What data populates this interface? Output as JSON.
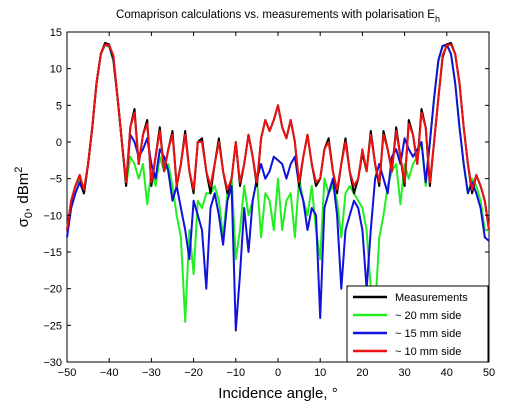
{
  "chart_data": {
    "type": "line",
    "title": "Comaprison calculations vs. measurements with polarisation E",
    "title_subscript": "h",
    "xlabel": "Incidence angle, °",
    "ylabel_main": "σ",
    "ylabel_sub": "0",
    "ylabel_rest": ", dBm",
    "ylabel_sup": "2",
    "xlim": [
      -50,
      50
    ],
    "ylim": [
      -30,
      15
    ],
    "xticks": [
      "−50",
      "−40",
      "−30",
      "−20",
      "−10",
      "0",
      "10",
      "20",
      "30",
      "40",
      "50"
    ],
    "yticks": [
      "−30",
      "−25",
      "−20",
      "−15",
      "−10",
      "−5",
      "0",
      "5",
      "10",
      "15"
    ],
    "xtick_values": [
      -50,
      -40,
      -30,
      -20,
      -10,
      0,
      10,
      20,
      30,
      40,
      50
    ],
    "ytick_values": [
      -30,
      -25,
      -20,
      -15,
      -10,
      -5,
      0,
      5,
      10,
      15
    ],
    "legend_position": "bottom-right",
    "grid": false,
    "x": [
      -50,
      -49,
      -48,
      -47,
      -46,
      -45,
      -44,
      -43,
      -42,
      -41,
      -40,
      -39,
      -38,
      -37,
      -36,
      -35,
      -34,
      -33,
      -32,
      -31,
      -30,
      -29,
      -28,
      -27,
      -26,
      -25,
      -24,
      -23,
      -22,
      -21,
      -20,
      -19,
      -18,
      -17,
      -16,
      -15,
      -14,
      -13,
      -12,
      -11,
      -10,
      -9,
      -8,
      -7,
      -6,
      -5,
      -4,
      -3,
      -2,
      -1,
      0,
      1,
      2,
      3,
      4,
      5,
      6,
      7,
      8,
      9,
      10,
      11,
      12,
      13,
      14,
      15,
      16,
      17,
      18,
      19,
      20,
      21,
      22,
      23,
      24,
      25,
      26,
      27,
      28,
      29,
      30,
      31,
      32,
      33,
      34,
      35,
      36,
      37,
      38,
      39,
      40,
      41,
      42,
      43,
      44,
      45,
      46,
      47,
      48,
      49,
      50
    ],
    "series": [
      {
        "name": "Measurements",
        "color": "#000000",
        "values": [
          -12,
          -8,
          -6,
          -4.5,
          -7,
          -3,
          2,
          8,
          12,
          13.5,
          13.3,
          11.5,
          6,
          0,
          -6,
          2,
          4.5,
          -3,
          1,
          3,
          -6,
          -2,
          2,
          -4,
          -1,
          1.5,
          -6,
          -3,
          1.5,
          -4,
          -7,
          0,
          0.5,
          -4,
          -7,
          -3,
          0.5,
          -4,
          -7,
          -5,
          0,
          -6,
          -3,
          1,
          -2,
          -6,
          0.5,
          3,
          1.5,
          3,
          5,
          2,
          0.5,
          3,
          0,
          -6,
          -2,
          1,
          -3,
          -6,
          -5,
          -1,
          0.5,
          -4,
          -7,
          -3,
          0.5,
          -4,
          -7,
          -5,
          -1.5,
          -4,
          1.5,
          -3,
          -6,
          1.5,
          -1,
          -4,
          2,
          -2,
          -6,
          3,
          1,
          -3,
          4.5,
          2,
          -6,
          0,
          6,
          11.5,
          13.3,
          13.5,
          12,
          8,
          2,
          -3,
          -7,
          -4.5,
          -6,
          -8,
          -12
        ]
      },
      {
        "name": "~ 20 mm side",
        "color": "#22ee22",
        "values": [
          -12,
          -8,
          -6,
          -5,
          -7,
          -3,
          2,
          8,
          12,
          13.2,
          13,
          11,
          6,
          0,
          -6,
          -2,
          -3,
          -5,
          -3,
          -8.5,
          -4,
          -6,
          -2,
          -4,
          -3,
          -6,
          -10,
          -13,
          -24.5,
          -12,
          -18,
          -8,
          -9,
          -7,
          -7,
          -6,
          -8,
          -13,
          -7,
          -5,
          -16,
          -12,
          -6,
          -10,
          -8,
          -5,
          -13,
          -7,
          -8,
          -12,
          -5,
          -12,
          -8,
          -7,
          -13,
          -5,
          -8,
          -10,
          -6,
          -12,
          -16,
          -5,
          -7,
          -6,
          -8,
          -13,
          -7,
          -6,
          -7,
          -8,
          -9,
          -12,
          -20,
          -23,
          -13,
          -10,
          -6,
          -4,
          -3,
          -8.5,
          -3,
          -5,
          -3,
          -2,
          0,
          -6,
          0,
          6,
          11,
          13,
          13.2,
          12,
          8,
          2,
          -3,
          -7,
          -5,
          -6,
          -8,
          -12,
          -12
        ]
      },
      {
        "name": "~ 15 mm side",
        "color": "#1111dd",
        "values": [
          -13,
          -9,
          -7,
          -5.5,
          -7,
          -3,
          2,
          8,
          12,
          13.3,
          13.1,
          11.2,
          6,
          0,
          -5.5,
          1,
          0,
          -2,
          -1,
          0.5,
          -3,
          -5,
          -1,
          -2,
          -4,
          -8,
          -6,
          -9,
          -12,
          -16,
          -8,
          -10,
          -12,
          -20,
          -9,
          -7,
          -10,
          -14,
          -8,
          -6,
          -25.7,
          -18,
          -9,
          -15,
          -8,
          -5,
          -3,
          -5,
          -4,
          -2,
          -2.5,
          -3,
          -5,
          -3,
          -2,
          -6,
          -8,
          -12,
          -9,
          -10,
          -24,
          -9,
          -7,
          -5,
          -10,
          -20,
          -12,
          -10,
          -8,
          -9,
          -12,
          -20,
          -12,
          -5,
          -3,
          -5,
          -7,
          -2,
          -1,
          -3,
          0.5,
          -1,
          -2,
          -1,
          0,
          -5.5,
          0,
          6,
          11.2,
          13.1,
          13.3,
          12,
          8,
          2,
          -3,
          -7,
          -5.5,
          -7,
          -9,
          -13,
          -13.5
        ]
      },
      {
        "name": "~ 10 mm side",
        "color": "#ee1111",
        "values": [
          -12,
          -8,
          -6,
          -4.5,
          -6.5,
          -3,
          2,
          8,
          12,
          13.3,
          13.2,
          11.8,
          6,
          0,
          -5.5,
          2,
          4,
          -3,
          1,
          2.5,
          -5.5,
          -2,
          1.5,
          -4,
          -1,
          1,
          -6,
          -3,
          1,
          -4,
          -6.5,
          0,
          0,
          -4,
          -6,
          -3,
          0,
          -4,
          -6.5,
          -5,
          0,
          -5.5,
          -3,
          1,
          -2,
          -5.5,
          0.5,
          3,
          1.5,
          3,
          5,
          2,
          0.5,
          3,
          0,
          -5.5,
          -2,
          1,
          -3,
          -5.5,
          -5,
          -1,
          0,
          -4,
          -6.5,
          -3,
          0,
          -4,
          -6,
          -5,
          -1,
          -4,
          1,
          -3,
          -5.5,
          1,
          -1,
          -4,
          1.5,
          -2,
          -5.5,
          2.5,
          1,
          -3,
          4,
          2,
          -5.5,
          0,
          6,
          11.8,
          13.2,
          13.3,
          12,
          8,
          2,
          -3,
          -6.5,
          -4.5,
          -6,
          -8,
          -12
        ]
      }
    ]
  }
}
